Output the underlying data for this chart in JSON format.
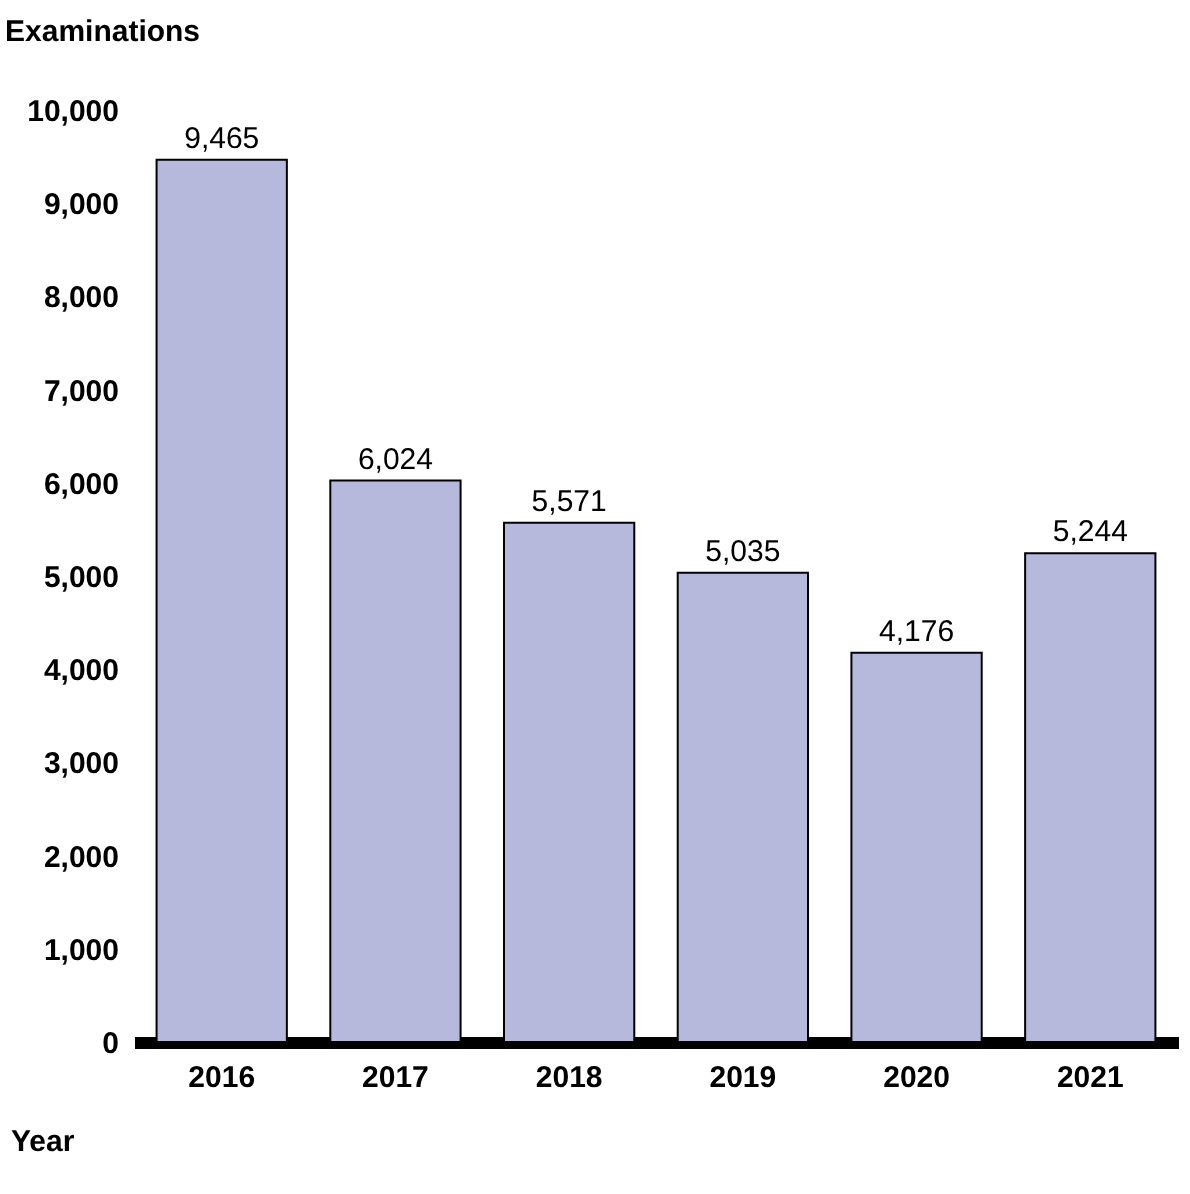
{
  "chart_data": {
    "type": "bar",
    "xlabel": "Year",
    "ylabel": "Examinations",
    "categories": [
      "2016",
      "2017",
      "2018",
      "2019",
      "2020",
      "2021"
    ],
    "values": [
      9465,
      6024,
      5571,
      5035,
      4176,
      5244
    ],
    "color": "#b6b9dc",
    "ylim": [
      0,
      10000
    ],
    "yticks": [
      {
        "value": 0,
        "label": "0"
      },
      {
        "value": 1000,
        "label": "1,000"
      },
      {
        "value": 2000,
        "label": "2,000"
      },
      {
        "value": 3000,
        "label": "3,000"
      },
      {
        "value": 4000,
        "label": "4,000"
      },
      {
        "value": 5000,
        "label": "5,000"
      },
      {
        "value": 6000,
        "label": "6,000"
      },
      {
        "value": 7000,
        "label": "7,000"
      },
      {
        "value": 8000,
        "label": "8,000"
      },
      {
        "value": 9000,
        "label": "9,000"
      },
      {
        "value": 10000,
        "label": "10,000"
      }
    ],
    "value_labels": [
      "9,465",
      "6,024",
      "5,571",
      "5,035",
      "4,176",
      "5,244"
    ],
    "grid": false
  }
}
